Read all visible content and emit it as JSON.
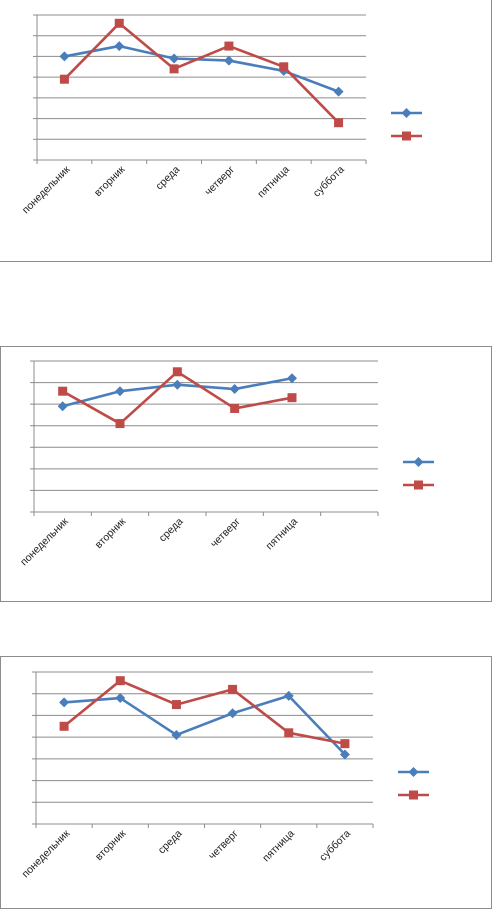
{
  "colors": {
    "series1": "#4a7ebb",
    "series2": "#be4b48",
    "grid": "#8c8c8c"
  },
  "chart_data": [
    {
      "type": "line",
      "categories": [
        "понедельник",
        "вторник",
        "среда",
        "четверг",
        "пятница",
        "суббота"
      ],
      "ylim": [
        0,
        7
      ],
      "grid": true,
      "legend": "right",
      "series": [
        {
          "values": [
            5.0,
            5.5,
            4.9,
            4.8,
            4.3,
            3.3
          ],
          "marker": "diamond"
        },
        {
          "values": [
            3.9,
            6.6,
            4.4,
            5.5,
            4.5,
            1.8
          ],
          "marker": "square"
        }
      ]
    },
    {
      "type": "line",
      "categories": [
        "понедельник",
        "вторник",
        "среда",
        "четверг",
        "пятница"
      ],
      "ylim": [
        0,
        7
      ],
      "grid": true,
      "legend": "right",
      "series": [
        {
          "values": [
            4.9,
            5.6,
            5.9,
            5.7,
            6.2
          ],
          "marker": "diamond"
        },
        {
          "values": [
            5.6,
            4.1,
            6.5,
            4.8,
            5.3
          ],
          "marker": "square"
        }
      ]
    },
    {
      "type": "line",
      "categories": [
        "понедельник",
        "вторник",
        "среда",
        "четверг",
        "пятница",
        "суббота"
      ],
      "ylim": [
        0,
        7
      ],
      "grid": true,
      "legend": "right",
      "series": [
        {
          "values": [
            5.6,
            5.8,
            4.1,
            5.1,
            5.9,
            3.2
          ],
          "marker": "diamond"
        },
        {
          "values": [
            4.5,
            6.6,
            5.5,
            6.2,
            4.2,
            3.7
          ],
          "marker": "square"
        }
      ]
    }
  ]
}
